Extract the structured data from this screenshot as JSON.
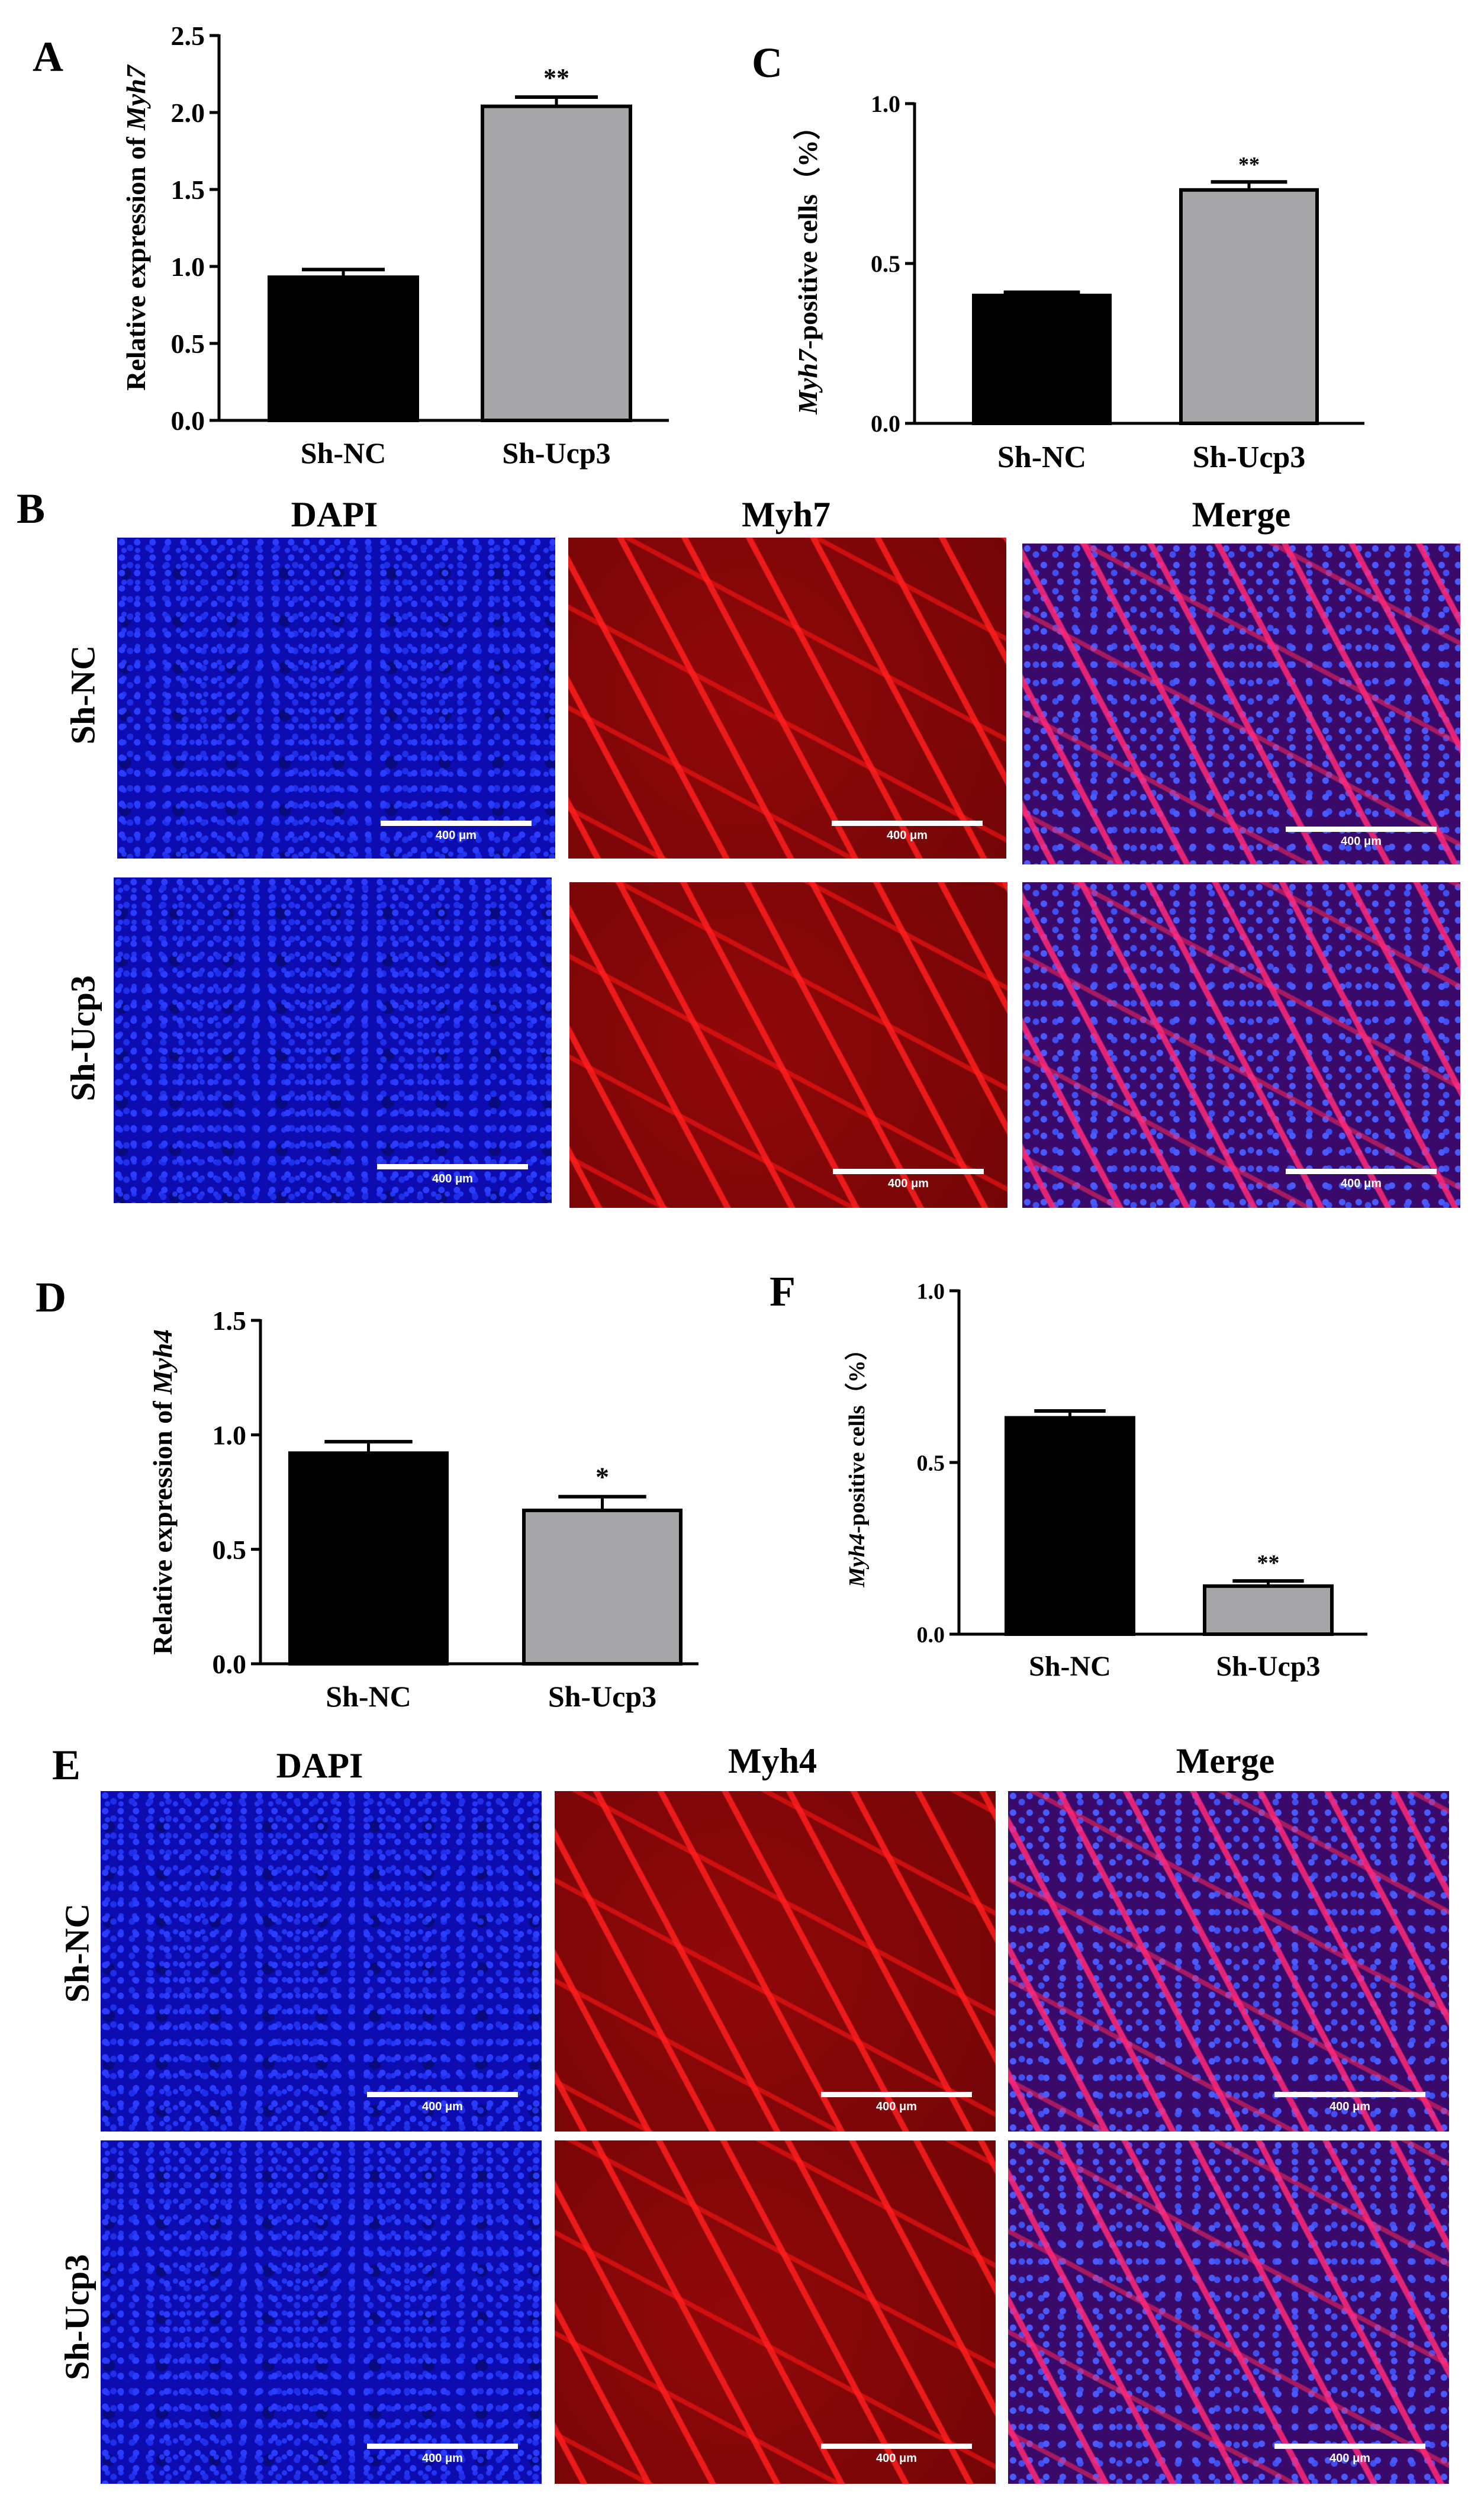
{
  "panel_letters": {
    "A": "A",
    "B": "B",
    "C": "C",
    "D": "D",
    "E": "E",
    "F": "F"
  },
  "chart_data": [
    {
      "id": "A",
      "type": "bar",
      "categories": [
        "Sh-NC",
        "Sh-Ucp3"
      ],
      "values": [
        0.93,
        2.04
      ],
      "errors": [
        0.05,
        0.06
      ],
      "significance": [
        "",
        "**"
      ],
      "ylabel_prefix": "Relative expression of ",
      "ylabel_gene": "Myh7",
      "ylim": [
        0,
        2.5
      ],
      "yticks": [
        "0.0",
        "0.5",
        "1.0",
        "1.5",
        "2.0",
        "2.5"
      ],
      "bar_colors": [
        "#000000",
        "#a6a6a8"
      ]
    },
    {
      "id": "C",
      "type": "bar",
      "categories": [
        "Sh-NC",
        "Sh-Ucp3"
      ],
      "values": [
        0.4,
        0.73
      ],
      "errors": [
        0.01,
        0.025
      ],
      "significance": [
        "",
        "**"
      ],
      "ylabel_gene": "Myh7",
      "ylabel_suffix": "-positive cells（%）",
      "ylim": [
        0,
        1.0
      ],
      "yticks": [
        "0.0",
        "0.5",
        "1.0"
      ],
      "bar_colors": [
        "#000000",
        "#a6a6a8"
      ]
    },
    {
      "id": "D",
      "type": "bar",
      "categories": [
        "Sh-NC",
        "Sh-Ucp3"
      ],
      "values": [
        0.92,
        0.67
      ],
      "errors": [
        0.05,
        0.06
      ],
      "significance": [
        "",
        "*"
      ],
      "ylabel_prefix": "Relative expression of ",
      "ylabel_gene": "Myh4",
      "ylim": [
        0,
        1.5
      ],
      "yticks": [
        "0.0",
        "0.5",
        "1.0",
        "1.5"
      ],
      "bar_colors": [
        "#000000",
        "#a6a6a8"
      ]
    },
    {
      "id": "F",
      "type": "bar",
      "categories": [
        "Sh-NC",
        "Sh-Ucp3"
      ],
      "values": [
        0.63,
        0.14
      ],
      "errors": [
        0.02,
        0.015
      ],
      "significance": [
        "",
        "**"
      ],
      "ylabel_gene": "Myh4",
      "ylabel_suffix": "-positive cells（%）",
      "ylim": [
        0,
        1.0
      ],
      "yticks": [
        "0.0",
        "0.5",
        "1.0"
      ],
      "bar_colors": [
        "#000000",
        "#a6a6a8"
      ]
    }
  ],
  "figure_B": {
    "columns": [
      "DAPI",
      "Myh7",
      "Merge"
    ],
    "rows": [
      "Sh-NC",
      "Sh-Ucp3"
    ],
    "scale_label": "400 μm"
  },
  "figure_E": {
    "columns": [
      "DAPI",
      "Myh4",
      "Merge"
    ],
    "rows": [
      "Sh-NC",
      "Sh-Ucp3"
    ],
    "scale_label": "400 μm"
  }
}
